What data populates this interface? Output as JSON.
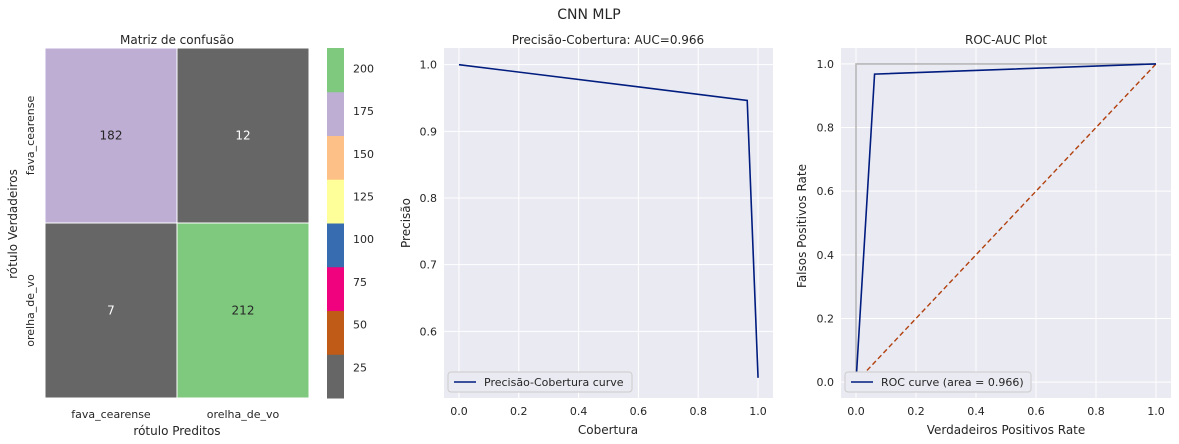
{
  "figure": {
    "suptitle": "CNN MLP"
  },
  "chart_data": [
    {
      "type": "heatmap",
      "title": "Matriz de confusão",
      "xlabel": "rótulo Preditos",
      "ylabel": "rótulo Verdadeiros",
      "row_labels": [
        "fava_cearense",
        "orelha_de_vo"
      ],
      "col_labels": [
        "fava_cearense",
        "orelha_de_vo"
      ],
      "values": [
        [
          182,
          12
        ],
        [
          7,
          212
        ]
      ],
      "colormap": "Accent",
      "colormap_colors": [
        "#666666",
        "#bf5b17",
        "#f0027f",
        "#386cb0",
        "#ffff99",
        "#fdc086",
        "#beaed4",
        "#7fc97f"
      ],
      "colorbar": {
        "range": [
          7,
          212
        ],
        "ticks": [
          25,
          50,
          75,
          100,
          125,
          150,
          175,
          200
        ]
      }
    },
    {
      "type": "line",
      "title": "Precisão-Cobertura: AUC=0.966",
      "xlabel": "Cobertura",
      "ylabel": "Precisão",
      "xlim": [
        -0.05,
        1.05
      ],
      "ylim": [
        0.5,
        1.025
      ],
      "xticks": [
        0.0,
        0.2,
        0.4,
        0.6,
        0.8,
        1.0
      ],
      "yticks": [
        0.6,
        0.7,
        0.8,
        0.9,
        1.0
      ],
      "grid": true,
      "legend": "lower-left",
      "series": [
        {
          "name": "Precisão-Cobertura curve",
          "color": "#001c7f",
          "x": [
            0.0,
            0.9638,
            1.0
          ],
          "y": [
            1.0,
            0.9464,
            0.5303
          ]
        }
      ]
    },
    {
      "type": "line",
      "title": "ROC-AUC Plot",
      "xlabel": "Verdadeiros Positivos Rate",
      "ylabel": "Falsos Positivos Rate",
      "xlim": [
        -0.05,
        1.05
      ],
      "ylim": [
        -0.05,
        1.05
      ],
      "xticks": [
        0.0,
        0.2,
        0.4,
        0.6,
        0.8,
        1.0
      ],
      "yticks": [
        0.0,
        0.2,
        0.4,
        0.6,
        0.8,
        1.0
      ],
      "grid": true,
      "legend": "lower-left",
      "series": [
        {
          "name": "ROC curve (area = 0.966)",
          "color": "#001c7f",
          "x": [
            0.0,
            0.0619,
            1.0
          ],
          "y": [
            0.0,
            0.968,
            1.0
          ]
        },
        {
          "color": "#b1400d",
          "dashed": true,
          "x": [
            0.0,
            1.0
          ],
          "y": [
            0.0,
            1.0
          ]
        },
        {
          "color": "#b8b8b8",
          "x": [
            0.0,
            0.0,
            1.0
          ],
          "y": [
            0.0,
            1.0,
            1.0
          ]
        }
      ]
    }
  ]
}
